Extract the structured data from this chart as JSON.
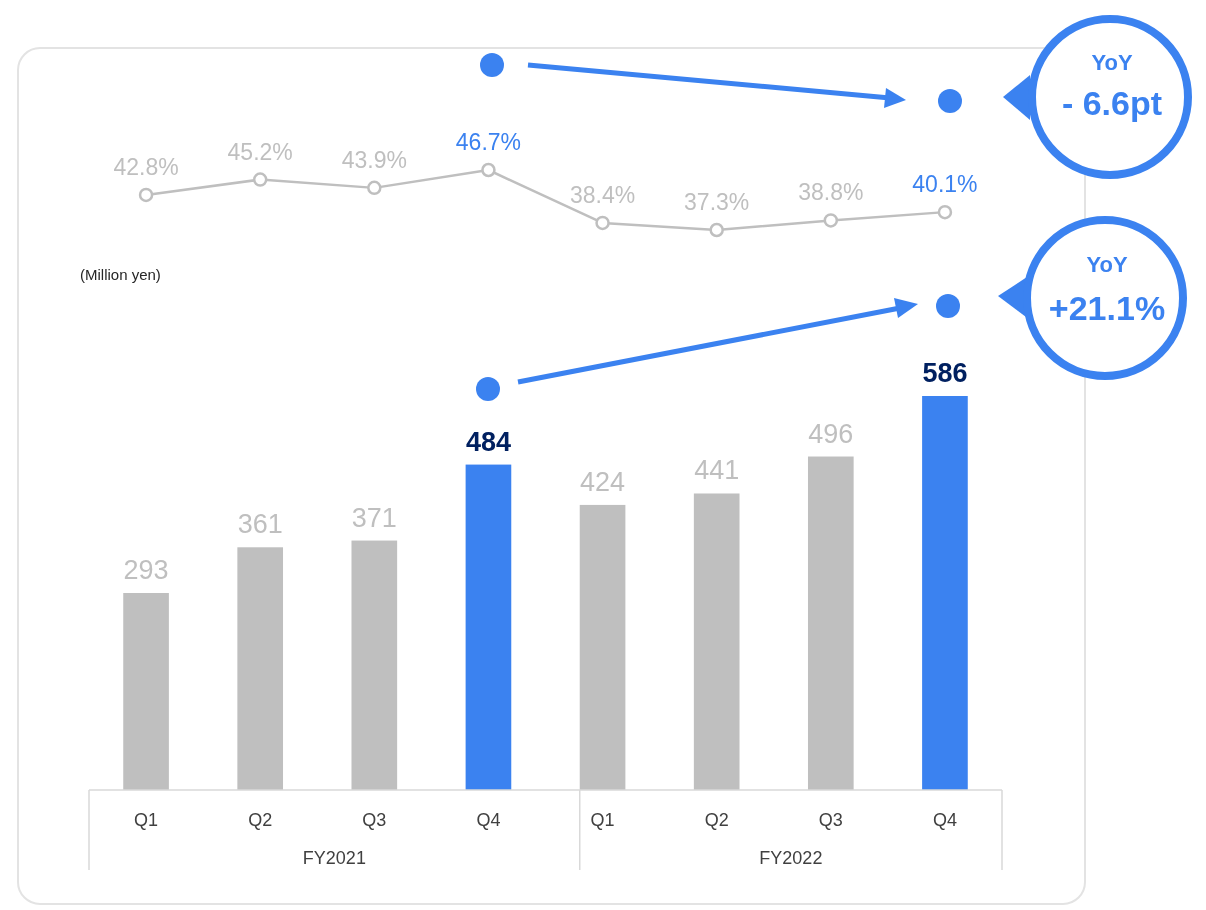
{
  "chart_data": [
    {
      "type": "line",
      "categories": [
        null,
        null,
        null,
        null,
        null,
        null,
        null,
        null
      ],
      "color": "#bfbfbf",
      "colors": [
        "#bfbfbf",
        "#bfbfbf",
        "#bfbfbf",
        "#3b82f0",
        "#bfbfbf",
        "#bfbfbf",
        "#bfbfbf",
        "#3b82f0"
      ],
      "values": [
        42.8,
        45.2,
        43.9,
        46.7,
        38.4,
        37.3,
        38.8,
        40.1
      ],
      "value_labels": [
        "42.8%",
        "45.2%",
        "43.9%",
        "46.7%",
        "38.4%",
        "37.3%",
        "38.8%",
        "40.1%"
      ],
      "marker": "circle",
      "annotations": [
        "YoY",
        "- 6.6pt"
      ]
    },
    {
      "type": "bar",
      "categories": [
        "Q1",
        "Q2",
        "Q3",
        "Q4",
        "Q1",
        "Q2",
        "Q3",
        "Q4"
      ],
      "colors": [
        "#bfbfbf",
        "#bfbfbf",
        "#bfbfbf",
        "#3b82f0",
        "#bfbfbf",
        "#bfbfbf",
        "#bfbfbf",
        "#3b82f0"
      ],
      "values": [
        293,
        361,
        371,
        484,
        424,
        441,
        496,
        586
      ],
      "ylim": [
        0,
        586
      ],
      "tick_labels": "x",
      "data_labels": true,
      "annotations": [
        "(Million yen)",
        "FY2021",
        "FY2022",
        "YoY",
        "+21.1%"
      ]
    }
  ]
}
